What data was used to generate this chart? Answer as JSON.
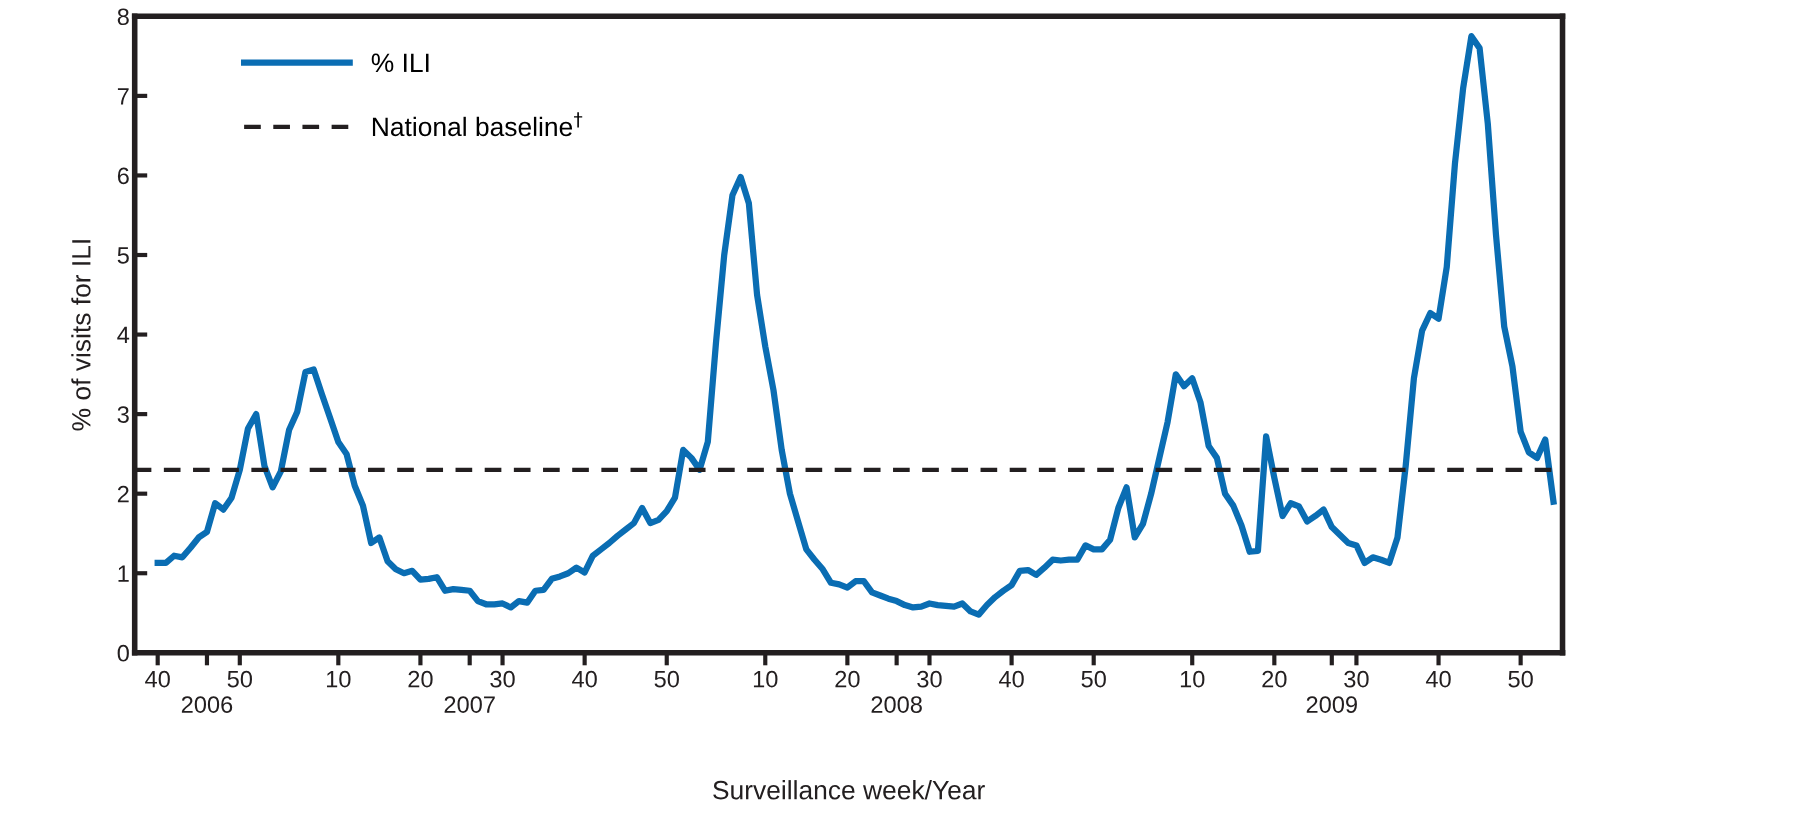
{
  "chart_data": {
    "type": "line",
    "xlabel": "Surveillance week/Year",
    "ylabel": "% of visits for ILI",
    "categories": [
      "40",
      null,
      null,
      null,
      null,
      null,
      "\n2006",
      null,
      null,
      null,
      "50",
      null,
      null,
      null,
      null,
      null,
      null,
      null,
      null,
      null,
      null,
      null,
      "10",
      null,
      null,
      null,
      null,
      null,
      null,
      null,
      null,
      null,
      "20",
      null,
      null,
      null,
      null,
      null,
      "\n2007",
      null,
      null,
      null,
      "30",
      null,
      null,
      null,
      null,
      null,
      null,
      null,
      null,
      null,
      "40",
      null,
      null,
      null,
      null,
      null,
      null,
      null,
      null,
      null,
      "50",
      null,
      null,
      null,
      null,
      null,
      null,
      null,
      null,
      null,
      null,
      null,
      "10",
      null,
      null,
      null,
      null,
      null,
      null,
      null,
      null,
      null,
      "20",
      null,
      null,
      null,
      null,
      null,
      "\n2008",
      null,
      null,
      null,
      "30",
      null,
      null,
      null,
      null,
      null,
      null,
      null,
      null,
      null,
      "40",
      null,
      null,
      null,
      null,
      null,
      null,
      null,
      null,
      null,
      "50",
      null,
      null,
      null,
      null,
      null,
      null,
      null,
      null,
      null,
      null,
      null,
      "10",
      null,
      null,
      null,
      null,
      null,
      null,
      null,
      null,
      null,
      "20",
      null,
      null,
      null,
      null,
      null,
      null,
      "\n2009",
      null,
      null,
      "30",
      null,
      null,
      null,
      null,
      null,
      null,
      null,
      null,
      null,
      "40",
      null,
      null,
      null,
      null,
      null,
      null,
      null,
      null,
      null,
      "50",
      null,
      null,
      null,
      null
    ],
    "series": [
      {
        "name": "% ILI",
        "color": "#0a6db3",
        "values": [
          1.13,
          1.13,
          1.22,
          1.2,
          1.32,
          1.45,
          1.52,
          1.88,
          1.8,
          1.95,
          2.3,
          2.82,
          3.0,
          2.35,
          2.08,
          2.28,
          2.8,
          3.03,
          3.53,
          3.56,
          3.25,
          2.95,
          2.65,
          2.5,
          2.1,
          1.85,
          1.38,
          1.45,
          1.15,
          1.05,
          1.0,
          1.03,
          0.92,
          0.93,
          0.95,
          0.78,
          0.8,
          0.79,
          0.78,
          0.65,
          0.61,
          0.61,
          0.62,
          0.57,
          0.65,
          0.63,
          0.78,
          0.79,
          0.93,
          0.96,
          1.0,
          1.07,
          1.01,
          1.22,
          1.3,
          1.38,
          1.47,
          1.55,
          1.63,
          1.82,
          1.63,
          1.67,
          1.78,
          1.95,
          2.55,
          2.45,
          2.3,
          2.65,
          3.9,
          5.0,
          5.75,
          5.98,
          5.65,
          4.5,
          3.85,
          3.3,
          2.55,
          2.0,
          1.65,
          1.3,
          1.17,
          1.05,
          0.88,
          0.86,
          0.82,
          0.9,
          0.9,
          0.76,
          0.72,
          0.68,
          0.65,
          0.6,
          0.57,
          0.58,
          0.62,
          0.6,
          0.59,
          0.58,
          0.62,
          0.52,
          0.48,
          0.6,
          0.7,
          0.78,
          0.85,
          1.03,
          1.04,
          0.98,
          1.07,
          1.17,
          1.16,
          1.17,
          1.17,
          1.35,
          1.3,
          1.3,
          1.42,
          1.82,
          2.08,
          1.45,
          1.62,
          2.0,
          2.45,
          2.9,
          3.5,
          3.35,
          3.45,
          3.15,
          2.6,
          2.45,
          2.0,
          1.85,
          1.6,
          1.27,
          1.28,
          2.72,
          2.2,
          1.72,
          1.88,
          1.84,
          1.65,
          1.72,
          1.8,
          1.58,
          1.48,
          1.38,
          1.35,
          1.13,
          1.2,
          1.17,
          1.13,
          1.45,
          2.35,
          3.45,
          4.05,
          4.27,
          4.2,
          4.85,
          6.15,
          7.1,
          7.75,
          7.6,
          6.65,
          5.25,
          4.1,
          3.6,
          2.78,
          2.52,
          2.45,
          2.68,
          1.9
        ]
      }
    ],
    "ref_lines": [
      {
        "axis": "y",
        "value": 2.3,
        "label": "National baseline$^{†}$",
        "color": "#231f20",
        "line_style": "dashed"
      }
    ],
    "ylim": [
      0,
      8
    ],
    "yticks": [
      0,
      1,
      2,
      3,
      4,
      5,
      6,
      7,
      8
    ],
    "legend": "top left",
    "grid": false,
    "line_style": "solid",
    "marker": "none"
  }
}
